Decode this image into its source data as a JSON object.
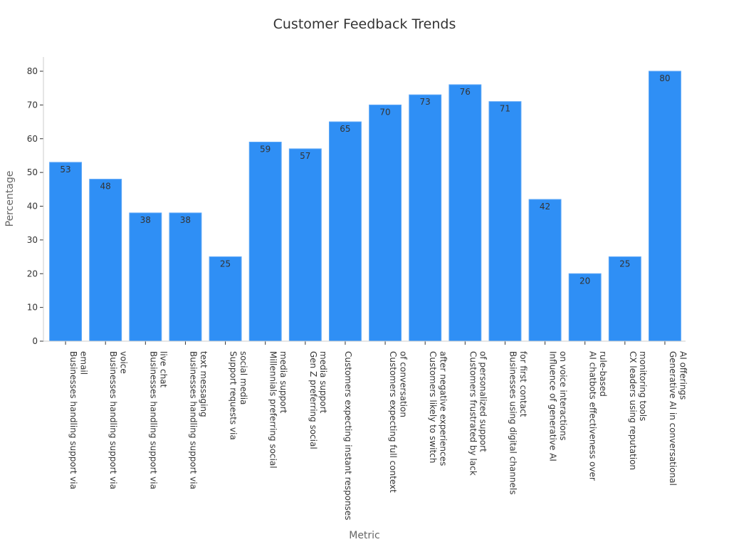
{
  "chart_data": {
    "type": "bar",
    "title": "Customer Feedback Trends",
    "xlabel": "Metric",
    "ylabel": "Percentage",
    "ylim": [
      0,
      80
    ],
    "yticks": [
      0,
      10,
      20,
      30,
      40,
      50,
      60,
      70,
      80
    ],
    "grid": false,
    "legend": "none",
    "bar_color": "#2f8ff5",
    "categories": [
      [
        "Businesses handling support via",
        "email"
      ],
      [
        "Businesses handling support via",
        "voice"
      ],
      [
        "Businesses handling support via",
        "live chat"
      ],
      [
        "Businesses handling support via",
        "text messaging"
      ],
      [
        "Support requests via",
        "social media"
      ],
      [
        "Millennials preferring social",
        "media support"
      ],
      [
        "Gen Z preferring social",
        "media support"
      ],
      [
        "Customers expecting instant responses"
      ],
      [
        "Customers expecting full context",
        "of conversation"
      ],
      [
        "Customers likely to switch",
        "after negative experiences"
      ],
      [
        "Customers frustrated by lack",
        "of personalized support"
      ],
      [
        "Businesses using digital channels",
        "for first contact"
      ],
      [
        "Influence of generative AI",
        "on voice interactions"
      ],
      [
        "AI chatbots effectiveness over",
        "rule-based"
      ],
      [
        "CX leaders using reputation",
        "monitoring tools"
      ],
      [
        "Generative AI in conversational",
        "AI offerings"
      ]
    ],
    "values": [
      53,
      48,
      38,
      38,
      25,
      59,
      57,
      65,
      70,
      73,
      76,
      71,
      42,
      20,
      25,
      80
    ]
  }
}
